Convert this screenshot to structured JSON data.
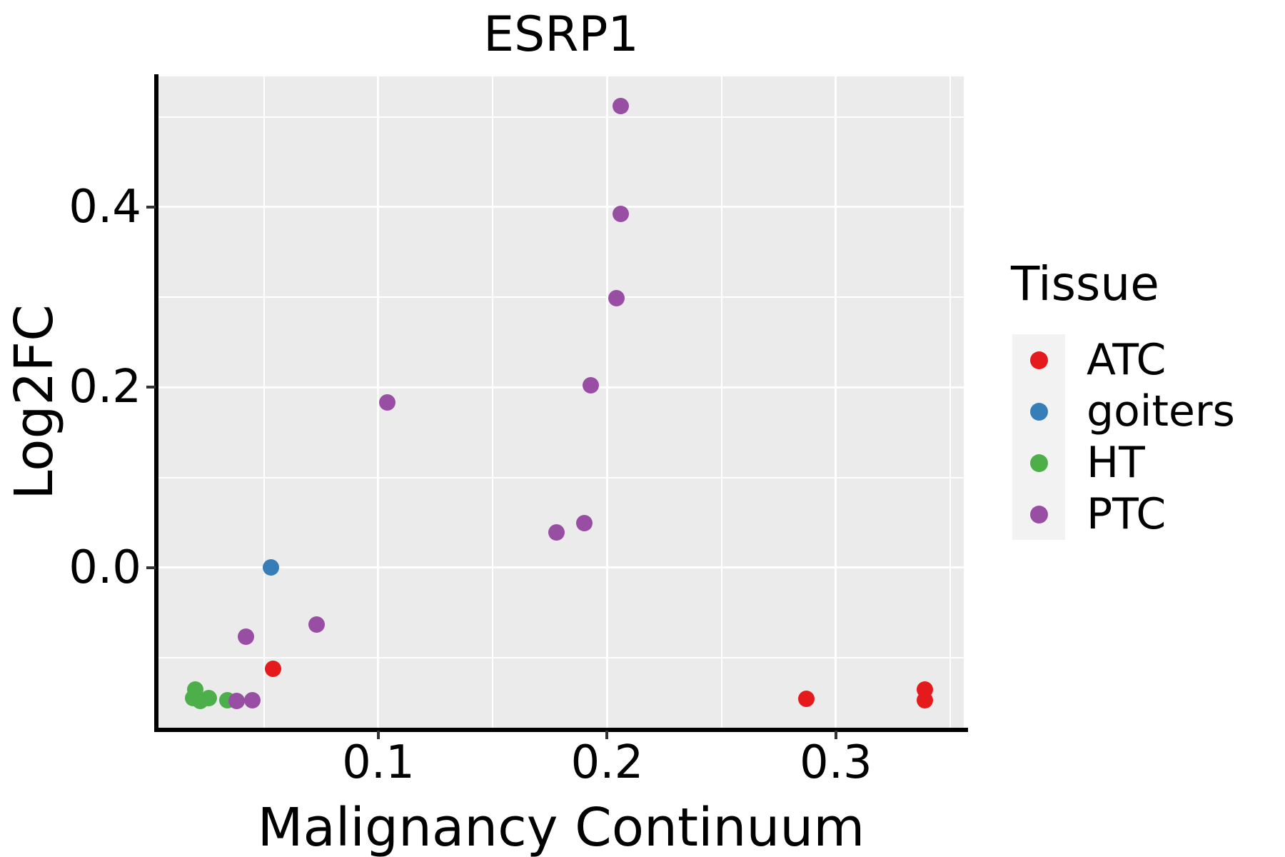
{
  "title": "ESRP1",
  "x_axis": {
    "label": "Malignancy Continuum",
    "tick_values": [
      0.1,
      0.2,
      0.3
    ],
    "tick_labels": [
      "0.1",
      "0.2",
      "0.3"
    ],
    "minor_ticks": [
      0.05,
      0.15,
      0.25,
      0.35
    ],
    "range": [
      0.0039,
      0.3559
    ]
  },
  "y_axis": {
    "label": "Log2FC",
    "tick_values": [
      0.0,
      0.2,
      0.4
    ],
    "tick_labels": [
      "0.0",
      "0.2",
      "0.4"
    ],
    "minor_ticks": [
      -0.1,
      0.1,
      0.3,
      0.5
    ],
    "range": [
      -0.1777,
      0.5449
    ]
  },
  "legend": {
    "title": "Tissue",
    "position": "right",
    "items": [
      {
        "label": "ATC",
        "color": "#E41A1C"
      },
      {
        "label": "goiters",
        "color": "#377EB8"
      },
      {
        "label": "HT",
        "color": "#4DAF4A"
      },
      {
        "label": "PTC",
        "color": "#984EA3"
      }
    ]
  },
  "style": {
    "panel_background": "#EBEBEB",
    "grid_color": "#FFFFFF",
    "legend_key_background": "#F2F2F2",
    "axis_line_color": "#000000",
    "point_diameter": 23
  },
  "chart_data": {
    "type": "scatter",
    "title": "ESRP1",
    "xlabel": "Malignancy Continuum",
    "ylabel": "Log2FC",
    "x_range": [
      0.0039,
      0.3559
    ],
    "y_range": [
      -0.1777,
      0.5449
    ],
    "x_ticks": [
      0.1,
      0.2,
      0.3
    ],
    "y_ticks": [
      0.0,
      0.2,
      0.4
    ],
    "grid": "on",
    "legend_position": "right",
    "series": [
      {
        "name": "ATC",
        "color": "#E41A1C",
        "points": [
          [
            0.054,
            -0.112
          ],
          [
            0.287,
            -0.146
          ],
          [
            0.339,
            -0.135
          ],
          [
            0.339,
            -0.147
          ]
        ]
      },
      {
        "name": "goiters",
        "color": "#377EB8",
        "points": [
          [
            0.053,
            0.0
          ]
        ]
      },
      {
        "name": "HT",
        "color": "#4DAF4A",
        "points": [
          [
            0.02,
            -0.135
          ],
          [
            0.019,
            -0.145
          ],
          [
            0.022,
            -0.148
          ],
          [
            0.026,
            -0.145
          ],
          [
            0.034,
            -0.147
          ]
        ]
      },
      {
        "name": "PTC",
        "color": "#984EA3",
        "points": [
          [
            0.104,
            0.183
          ],
          [
            0.178,
            0.039
          ],
          [
            0.19,
            0.049
          ],
          [
            0.193,
            0.202
          ],
          [
            0.204,
            0.299
          ],
          [
            0.206,
            0.392
          ],
          [
            0.206,
            0.512
          ],
          [
            0.073,
            -0.063
          ],
          [
            0.042,
            -0.077
          ],
          [
            0.038,
            -0.148
          ],
          [
            0.045,
            -0.147
          ]
        ]
      }
    ]
  }
}
